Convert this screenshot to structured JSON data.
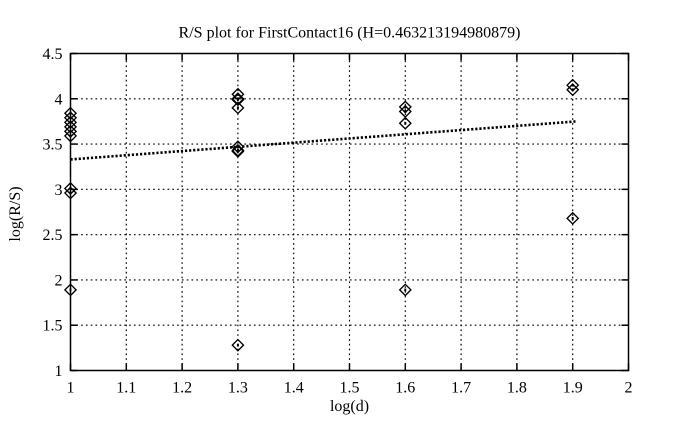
{
  "chart_data": {
    "type": "scatter",
    "title": "R/S plot for FirstContact16 (H=0.463213194980879)",
    "xlabel": "log(d)",
    "ylabel": "log(R/S)",
    "xlim": [
      1,
      2
    ],
    "ylim": [
      1,
      4.5
    ],
    "grid": true,
    "grid_style": "dotted",
    "legend": "none",
    "axis_color": "#000000",
    "marker": "open-diamond-with-center-dot",
    "marker_color": "#000000",
    "x_ticks": [
      {
        "value": 1.0,
        "label": "1"
      },
      {
        "value": 1.1,
        "label": "1.1"
      },
      {
        "value": 1.2,
        "label": "1.2"
      },
      {
        "value": 1.3,
        "label": "1.3"
      },
      {
        "value": 1.4,
        "label": "1.4"
      },
      {
        "value": 1.5,
        "label": "1.5"
      },
      {
        "value": 1.6,
        "label": "1.6"
      },
      {
        "value": 1.7,
        "label": "1.7"
      },
      {
        "value": 1.8,
        "label": "1.8"
      },
      {
        "value": 1.9,
        "label": "1.9"
      },
      {
        "value": 2.0,
        "label": "2"
      }
    ],
    "y_ticks": [
      {
        "value": 1.0,
        "label": "1"
      },
      {
        "value": 1.5,
        "label": "1.5"
      },
      {
        "value": 2.0,
        "label": "2"
      },
      {
        "value": 2.5,
        "label": "2.5"
      },
      {
        "value": 3.0,
        "label": "3"
      },
      {
        "value": 3.5,
        "label": "3.5"
      },
      {
        "value": 4.0,
        "label": "4"
      },
      {
        "value": 4.5,
        "label": "4.5"
      }
    ],
    "series": [
      {
        "name": "R/S values",
        "points": [
          [
            1.0,
            3.84
          ],
          [
            1.0,
            3.79
          ],
          [
            1.0,
            3.74
          ],
          [
            1.0,
            3.69
          ],
          [
            1.0,
            3.64
          ],
          [
            1.0,
            3.59
          ],
          [
            1.0,
            3.01
          ],
          [
            1.0,
            2.96
          ],
          [
            1.0,
            1.89
          ],
          [
            1.3,
            4.05
          ],
          [
            1.3,
            4.0
          ],
          [
            1.3,
            3.99
          ],
          [
            1.3,
            3.9
          ],
          [
            1.3,
            3.47
          ],
          [
            1.3,
            3.43
          ],
          [
            1.3,
            3.42
          ],
          [
            1.3,
            1.28
          ],
          [
            1.6,
            3.91
          ],
          [
            1.6,
            3.86
          ],
          [
            1.6,
            3.73
          ],
          [
            1.6,
            1.89
          ],
          [
            1.9,
            4.15
          ],
          [
            1.9,
            4.1
          ],
          [
            1.9,
            2.68
          ]
        ]
      }
    ],
    "fit_line": {
      "style": "bold-dotted",
      "color": "#000000",
      "slope": 0.463213194980879,
      "intercept": 2.867,
      "x_start": 1.0,
      "x_end": 1.905
    },
    "hurst_exponent": 0.463213194980879
  }
}
